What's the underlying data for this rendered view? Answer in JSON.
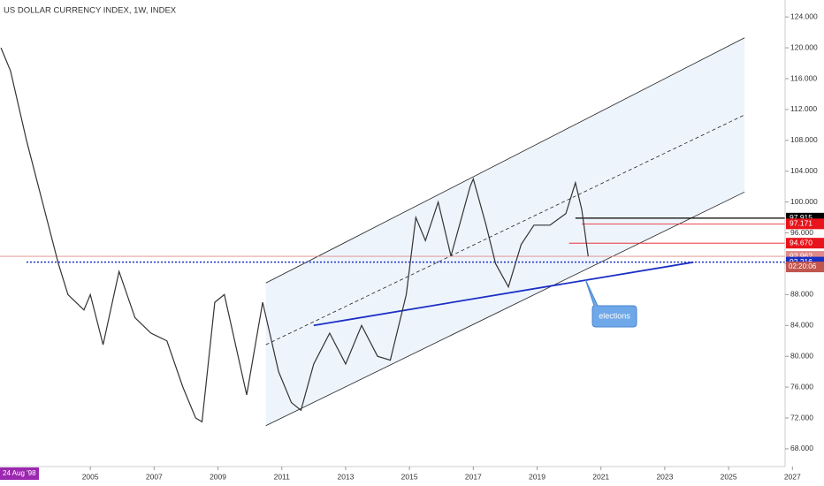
{
  "chart_data": {
    "type": "line",
    "title": "US DOLLAR CURRENCY INDEX, 1W, INDEX",
    "date_label": "24 Aug '98",
    "countdown": "02:20:06",
    "annotation": "elections",
    "color": "#333333",
    "x": [
      2002.2,
      2002.5,
      2003.0,
      2003.5,
      2004.0,
      2004.3,
      2004.8,
      2005.0,
      2005.4,
      2005.9,
      2006.4,
      2006.9,
      2007.4,
      2007.9,
      2008.3,
      2008.5,
      2008.9,
      2009.2,
      2009.9,
      2010.4,
      2010.9,
      2011.3,
      2011.6,
      2012.0,
      2012.5,
      2013.0,
      2013.5,
      2014.0,
      2014.4,
      2014.9,
      2015.2,
      2015.5,
      2015.9,
      2016.3,
      2016.9,
      2017.0,
      2017.4,
      2017.7,
      2018.1,
      2018.5,
      2018.9,
      2019.4,
      2019.9,
      2020.2,
      2020.4,
      2020.6
    ],
    "values": [
      120,
      117,
      108,
      100,
      92,
      88,
      86,
      88,
      81.5,
      91,
      85,
      83,
      82,
      76,
      72,
      71.5,
      87,
      88,
      75,
      87,
      78,
      74,
      73,
      79,
      83,
      79,
      84,
      80,
      79.5,
      88,
      98,
      95,
      100,
      93,
      102,
      103,
      97,
      92,
      89,
      94.5,
      97,
      97,
      98.5,
      102.5,
      99,
      92.962
    ],
    "xlim": [
      2002.17,
      2026.77
    ],
    "ylim": [
      65.7,
      126.2
    ],
    "xticks": [
      2005,
      2007,
      2009,
      2011,
      2013,
      2015,
      2017,
      2019,
      2021,
      2023,
      2025,
      2027
    ],
    "yticks": [
      {
        "value": 68,
        "label": "68.000"
      },
      {
        "value": 72,
        "label": "72.000"
      },
      {
        "value": 76,
        "label": "76.000"
      },
      {
        "value": 80,
        "label": "80.000"
      },
      {
        "value": 84,
        "label": "84.000"
      },
      {
        "value": 88,
        "label": "88.000"
      },
      {
        "value": 92,
        "label": "92.000"
      },
      {
        "value": 96,
        "label": "96.000"
      },
      {
        "value": 100,
        "label": "100.000"
      },
      {
        "value": 104,
        "label": "104.000"
      },
      {
        "value": 108,
        "label": "108.000"
      },
      {
        "value": 112,
        "label": "112.000"
      },
      {
        "value": 116,
        "label": "116.000"
      },
      {
        "value": 120,
        "label": "120.000"
      },
      {
        "value": 124,
        "label": "124.000"
      }
    ],
    "channel": {
      "start": 2010.5,
      "end": 2025.5,
      "upper": [
        89.5,
        121.3
      ],
      "middle": [
        81.5,
        111.3
      ],
      "lower": [
        71,
        101.3
      ],
      "fill": "#eef4fc"
    },
    "trendline": {
      "x": [
        2012,
        2023.9
      ],
      "values": [
        84,
        92.2
      ],
      "color": "#1a2fc4"
    },
    "levels": [
      {
        "value": 97.915,
        "start": 2020.2,
        "color": "#000000"
      },
      {
        "value": 97.171,
        "start": 2020.4,
        "color": "#e8141c"
      },
      {
        "value": 94.67,
        "label": "94.670",
        "start": 2020.0,
        "color": "#e8141c"
      },
      {
        "value": 92.962,
        "start": 2002.17,
        "color": "#e08a8a"
      },
      {
        "value": 92.216,
        "start": 2003.0,
        "color": "#1a2fc4"
      }
    ]
  }
}
